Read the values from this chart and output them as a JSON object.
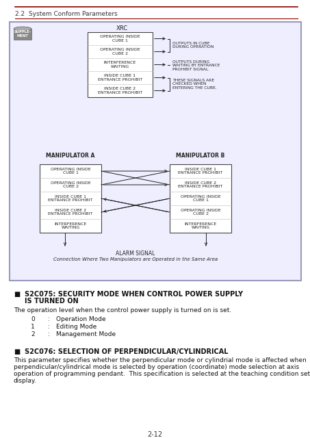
{
  "page_bg": "#ffffff",
  "header_text": "2.2  System Conform Parameters",
  "header_color": "#333333",
  "header_line_color": "#8b0000",
  "box_border_color": "#9999bb",
  "box_bg": "#eeeeff",
  "diagram_text_color": "#222222",
  "section1_title_line1": "S2C075: SECURITY MODE WHEN CONTROL POWER SUPPLY",
  "section1_title_line2": "IS TURNED ON",
  "section1_body": "The operation level when the control power supply is turned on is set.",
  "section1_items": [
    [
      "0",
      "Operation Mode"
    ],
    [
      "1",
      "Editing Mode"
    ],
    [
      "2",
      "Management Mode"
    ]
  ],
  "section2_title": "S2C076: SELECTION OF PERPENDICULAR/CYLINDRICAL",
  "section2_body_lines": [
    "This parameter specifies whether the perpendicular mode or cylindrial mode is affected when",
    "perpendicular/cylindrical mode is selected by operation (coordinate) mode selection at axis",
    "operation of programming pendant.  This specification is selected at the teaching condition set",
    "display."
  ],
  "footer_text": "2-12",
  "xrc_label": "XRC",
  "xrc_box_items": [
    "OPERATING INSIDE\nCUBE 1",
    "OPERATING INSIDE\nCUBE 2",
    "INTERFERENCE\nWAITING",
    "INSIDE CUBE 1\nENTRANCE PROHIBIT",
    "INSIDE CUBE 2\nENTRANCE PROHIBIT"
  ],
  "manip_a_label": "MANIPULATOR A",
  "manip_b_label": "MANIPULATOR B",
  "manip_a_items": [
    "OPERATING INSIDE\nCUBE 1",
    "OPERATING INSIDE\nCUBE 2",
    "INSIDE CUBE 1\nENTRANCE PROHIBIT",
    "INSIDE CUBE 2\nENTRANCE PROHIBIT",
    "INTERFERENCE\nWAITING"
  ],
  "manip_b_items": [
    "INSIDE CUBE 1\nENTRANCE PROHIBIT",
    "INSIDE CUBE 2\nENTRANCE PROHIBIT",
    "OPERATING INSIDE\nCUBE 1",
    "OPERATING INSIDE\nCUBE 2",
    "INTERFERENCE\nWAITING"
  ],
  "alarm_label": "ALARM SIGNAL",
  "connection_label": "Connection Where Two Manipulators are Operated in the Same Area"
}
